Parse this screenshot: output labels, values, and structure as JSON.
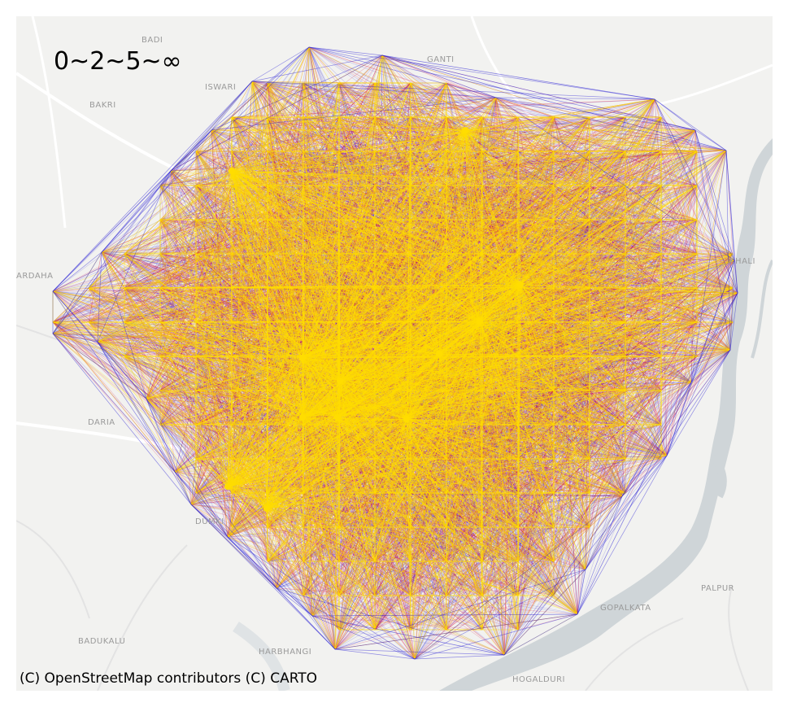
{
  "map": {
    "legend_text": "0~2~5~∞",
    "attribution": "(C) OpenStreetMap contributors (C) CARTO",
    "place_labels": [
      "BADI",
      "BAKRI",
      "ISWARI",
      "GANTI",
      "ARDAHA",
      "KHALI",
      "DARIA",
      "DUMKI",
      "PALPUR",
      "GOPALKATA",
      "BADUKALU",
      "HARBHANGI",
      "HOGALDURI"
    ],
    "edge_colors": {
      "short": "#2a1fd6",
      "medium": "#dc143c",
      "long": "#ffdd00"
    },
    "basemap_colors": {
      "land": "#f2f2f0",
      "water": "#cfd5d8",
      "road": "#ffffff",
      "minor_road": "#e3e3e3"
    }
  }
}
